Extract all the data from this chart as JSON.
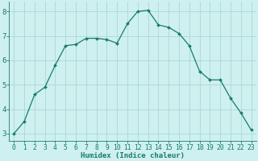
{
  "x": [
    0,
    1,
    2,
    3,
    4,
    5,
    6,
    7,
    8,
    9,
    10,
    11,
    12,
    13,
    14,
    15,
    16,
    17,
    18,
    19,
    20,
    21,
    22,
    23
  ],
  "y": [
    3.0,
    3.5,
    4.6,
    4.9,
    5.8,
    6.6,
    6.65,
    6.9,
    6.9,
    6.85,
    6.7,
    7.5,
    8.0,
    8.05,
    7.45,
    7.35,
    7.1,
    6.6,
    5.55,
    5.2,
    5.2,
    4.45,
    3.85,
    3.15
  ],
  "line_color": "#1a7a6e",
  "marker": "D",
  "marker_size": 2.0,
  "bg_color": "#cef0ee",
  "grid_color": "#acd8d5",
  "xlabel": "Humidex (Indice chaleur)",
  "ylim": [
    2.7,
    8.4
  ],
  "xlim": [
    -0.5,
    23.5
  ],
  "yticks": [
    3,
    4,
    5,
    6,
    7,
    8
  ],
  "xticks": [
    0,
    1,
    2,
    3,
    4,
    5,
    6,
    7,
    8,
    9,
    10,
    11,
    12,
    13,
    14,
    15,
    16,
    17,
    18,
    19,
    20,
    21,
    22,
    23
  ],
  "tick_color": "#1a7a6e",
  "label_color": "#1a7a6e",
  "xlabel_fontsize": 6.5,
  "ytick_fontsize": 6.5,
  "xtick_fontsize": 5.8
}
